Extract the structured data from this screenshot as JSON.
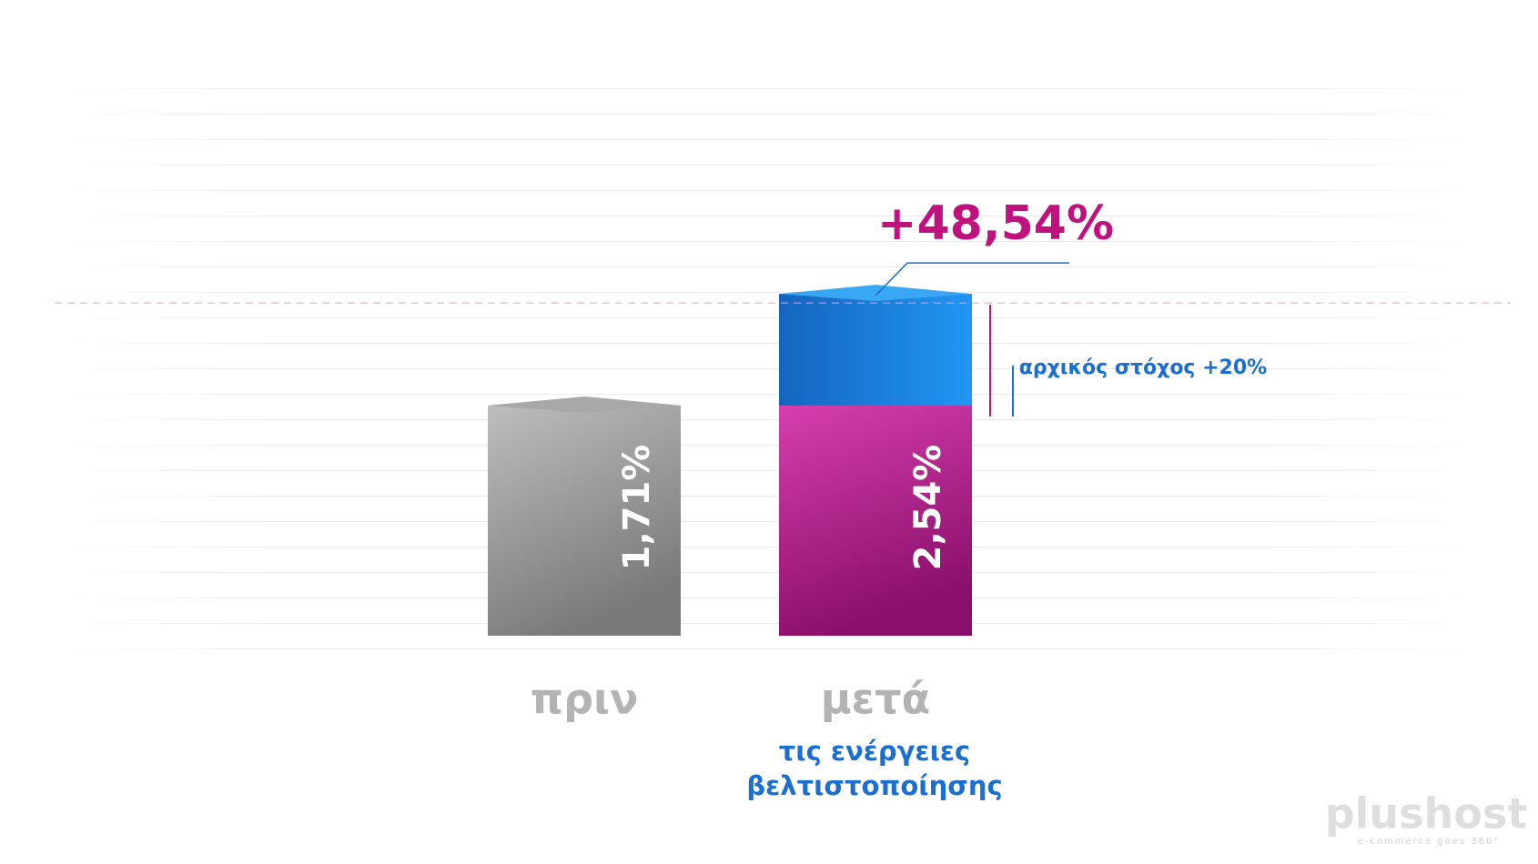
{
  "chart_data": {
    "type": "bar",
    "categories": [
      "πριν",
      "μετά"
    ],
    "values": [
      1.71,
      2.54
    ],
    "value_labels": [
      "1,71%",
      "2,54%"
    ],
    "colors": [
      "#9a9a9a",
      "#1e88e5",
      "#c2188a"
    ],
    "increase_label": "+48,54%",
    "target_label": "αρχικός στόχος +20%",
    "note_lines": [
      "τις ενέργειες",
      "βελτιστοποίησης"
    ]
  },
  "logo": {
    "name": "plushost",
    "tagline": "e-commerce goes 360°"
  }
}
